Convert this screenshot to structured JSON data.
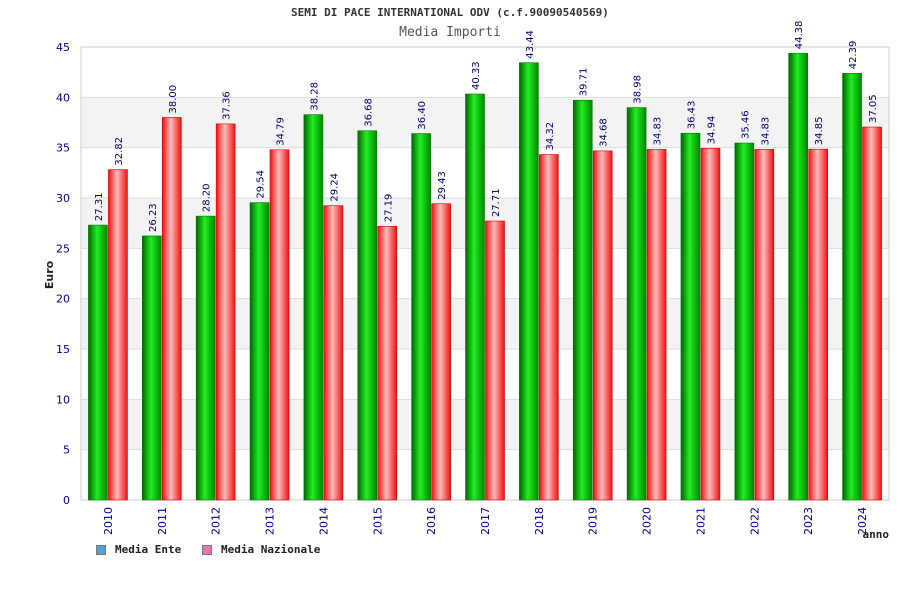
{
  "chart_data": {
    "type": "bar",
    "title": "SEMI DI PACE INTERNATIONAL ODV (c.f.90090540569)",
    "subtitle": "Media Importi",
    "xlabel": "anno",
    "ylabel": "Euro",
    "ylim": [
      0,
      45
    ],
    "yticks": [
      0,
      5,
      10,
      15,
      20,
      25,
      30,
      35,
      40,
      45
    ],
    "grid": true,
    "legend_position": "bottom-left",
    "categories": [
      "2010",
      "2011",
      "2012",
      "2013",
      "2014",
      "2015",
      "2016",
      "2017",
      "2018",
      "2019",
      "2020",
      "2021",
      "2022",
      "2023",
      "2024"
    ],
    "series": [
      {
        "name": "Media Ente",
        "legend_color": "#5b9bd5",
        "bar_color": "#00b000",
        "values": [
          27.31,
          26.23,
          28.2,
          29.54,
          38.28,
          36.68,
          36.4,
          40.33,
          43.44,
          39.71,
          38.98,
          36.43,
          35.46,
          44.38,
          42.39
        ],
        "labels": [
          "27.31",
          "26.23",
          "28.20",
          "29.54",
          "38.28",
          "36.68",
          "36.40",
          "40.33",
          "43.44",
          "39.71",
          "38.98",
          "36.43",
          "35.46",
          "44.38",
          "42.39"
        ]
      },
      {
        "name": "Media Nazionale",
        "legend_color": "#e07aa8",
        "bar_color": "#e02030",
        "values": [
          32.82,
          38.0,
          37.36,
          34.79,
          29.24,
          27.19,
          29.43,
          27.71,
          34.32,
          34.68,
          34.83,
          34.94,
          34.83,
          34.85,
          37.05
        ],
        "labels": [
          "32.82",
          "38.00",
          "37.36",
          "34.79",
          "29.24",
          "27.19",
          "29.43",
          "27.71",
          "34.32",
          "34.68",
          "34.83",
          "34.94",
          "34.83",
          "34.85",
          "37.05"
        ]
      }
    ]
  }
}
